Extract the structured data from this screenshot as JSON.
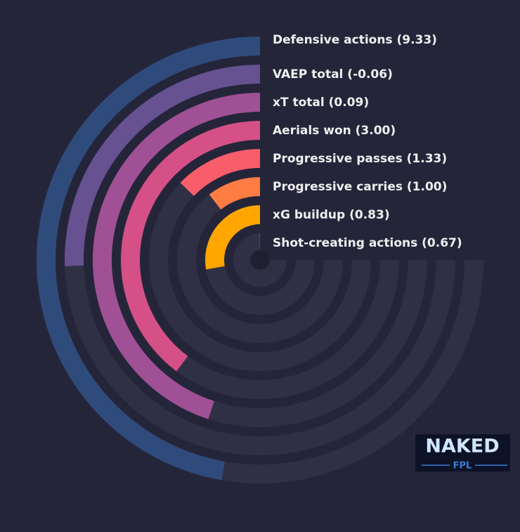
{
  "chart_data": {
    "type": "radial_bar",
    "categories": [
      "Defensive actions (9.33)",
      "VAEP total (-0.06)",
      "xT total (0.09)",
      "Aerials won (3.00)",
      "Progressive passes (1.33)",
      "Progressive carries (1.00)",
      "xG buildup (0.83)",
      "Shot-creating actions (0.67)"
    ],
    "values": [
      63,
      34,
      60,
      53,
      17,
      14,
      37,
      1
    ],
    "colors": [
      "#2f4b7c",
      "#665191",
      "#a05195",
      "#d45087",
      "#f95d6a",
      "#ff7c43",
      "#ffa600",
      "#2f4b7c"
    ],
    "vlim": [
      0,
      100
    ]
  },
  "logo": {
    "line1": "NAKED",
    "line2": "FPL"
  }
}
